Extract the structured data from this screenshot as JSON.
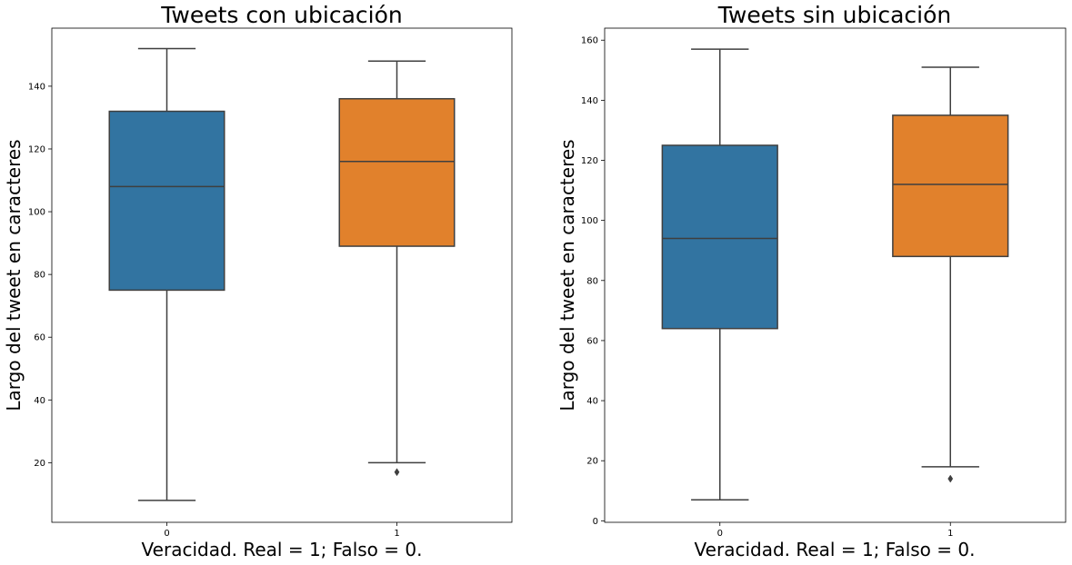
{
  "chart_data": [
    {
      "type": "boxplot",
      "title": "Tweets con ubicación",
      "xlabel": "Veracidad. Real = 1; Falso = 0.",
      "ylabel": "Largo del tweet en caracteres",
      "categories": [
        "0",
        "1"
      ],
      "ylim": [
        1,
        158.5
      ],
      "yticks": [
        20,
        40,
        60,
        80,
        100,
        120,
        140
      ],
      "grid": false,
      "legend": "none",
      "boxes": [
        {
          "category": "0",
          "whisker_low": 8,
          "q1": 75,
          "median": 108,
          "q3": 132,
          "whisker_high": 152,
          "outliers": [],
          "color": "#3274a1"
        },
        {
          "category": "1",
          "whisker_low": 20,
          "q1": 89,
          "median": 116,
          "q3": 136,
          "whisker_high": 148,
          "outliers": [
            17
          ],
          "color": "#e1812c"
        }
      ]
    },
    {
      "type": "boxplot",
      "title": "Tweets sin ubicación",
      "xlabel": "Veracidad. Real = 1; Falso = 0.",
      "ylabel": "Largo del tweet en caracteres",
      "categories": [
        "0",
        "1"
      ],
      "ylim": [
        -0.5,
        164
      ],
      "yticks": [
        0,
        20,
        40,
        60,
        80,
        100,
        120,
        140,
        160
      ],
      "grid": false,
      "legend": "none",
      "boxes": [
        {
          "category": "0",
          "whisker_low": 7,
          "q1": 64,
          "median": 94,
          "q3": 125,
          "whisker_high": 157,
          "outliers": [],
          "color": "#3274a1"
        },
        {
          "category": "1",
          "whisker_low": 18,
          "q1": 88,
          "median": 112,
          "q3": 135,
          "whisker_high": 151,
          "outliers": [
            14
          ],
          "color": "#e1812c"
        }
      ]
    }
  ]
}
